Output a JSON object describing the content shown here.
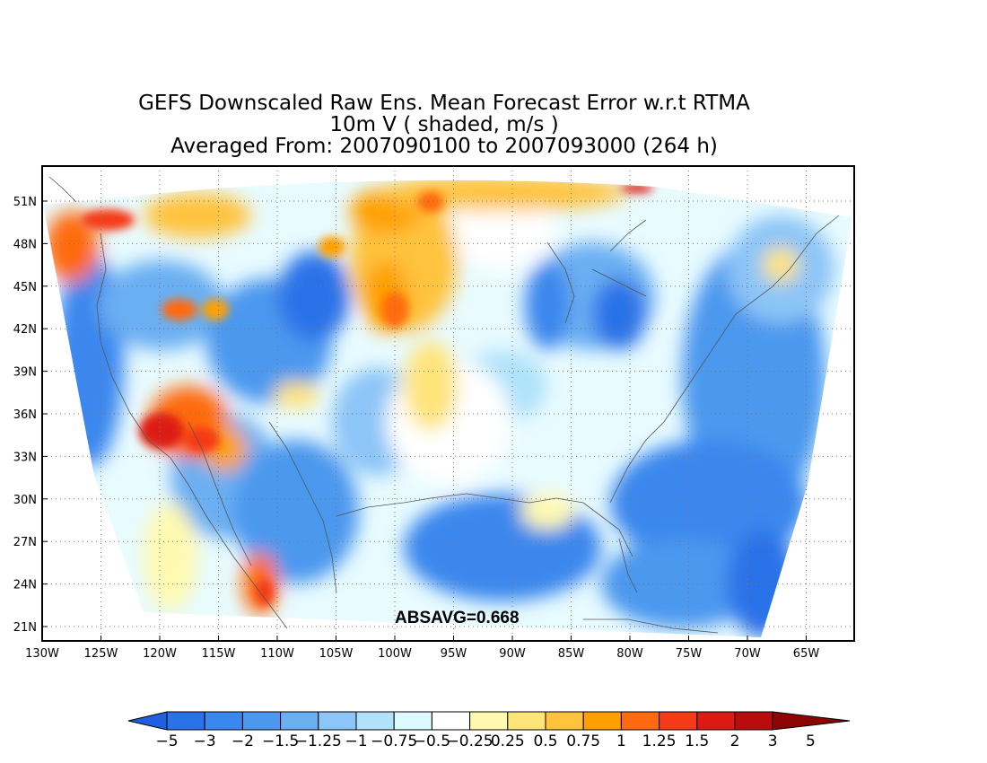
{
  "title": {
    "line1": "GEFS Downscaled Raw Ens. Mean Forecast Error w.r.t RTMA",
    "line2": "10m V ( shaded, m/s )",
    "line3": "Averaged From: 2007090100 to 2007093000 (264 h)"
  },
  "map": {
    "lat_ticks": [
      "51N",
      "48N",
      "45N",
      "42N",
      "39N",
      "36N",
      "33N",
      "30N",
      "27N",
      "24N",
      "21N"
    ],
    "lon_ticks": [
      "130W",
      "125W",
      "120W",
      "115W",
      "110W",
      "105W",
      "100W",
      "95W",
      "90W",
      "85W",
      "80W",
      "75W",
      "70W",
      "65W"
    ],
    "annotation": "ABSAVG=0.668"
  },
  "colorbar": {
    "labels": [
      "-5",
      "-3",
      "-2",
      "-1.5",
      "-1.25",
      "-1",
      "-0.75",
      "-0.5",
      "-0.25",
      "0.25",
      "0.5",
      "0.75",
      "1",
      "1.25",
      "1.5",
      "2",
      "3",
      "5"
    ],
    "colors": [
      "#1f5fe0",
      "#2a72e8",
      "#3a87ee",
      "#4c98ef",
      "#6aaff2",
      "#8cc5f7",
      "#b0e2fb",
      "#dcfaff",
      "#ffffff",
      "#fff9b0",
      "#ffe47a",
      "#ffc33e",
      "#ffa000",
      "#ff6a10",
      "#f53a18",
      "#dd1a12",
      "#b90c0c",
      "#8c0404"
    ]
  }
}
